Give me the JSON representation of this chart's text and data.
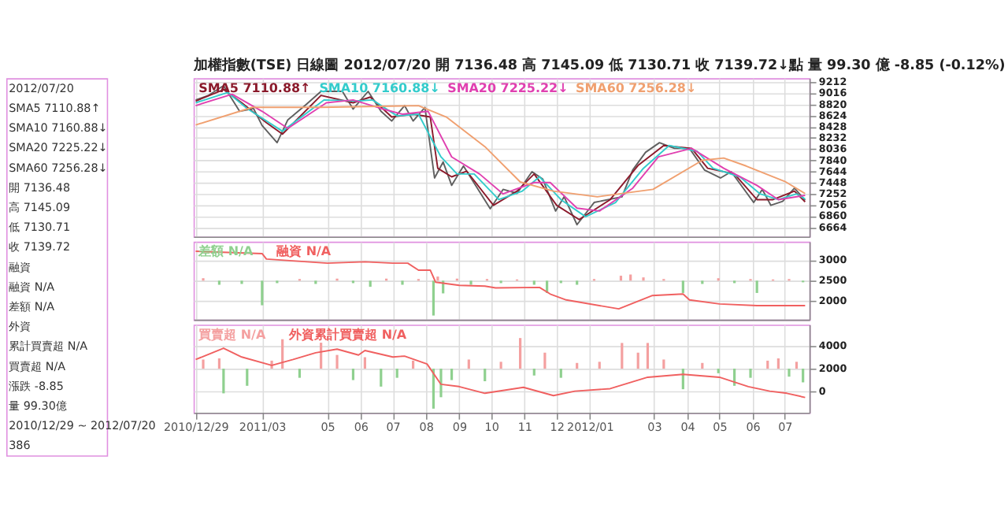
{
  "chart_data": [
    {
      "type": "line",
      "title": "加權指數(TSE) 日線圖 2012/07/20 開 7136.48 高 7145.09 低 7130.71 收 7139.72↓點 量 99.30 億 -8.85 (-0.12%)",
      "xlim": [
        "2010-12-27",
        "2012-07-24"
      ],
      "xticks": [
        {
          "value": "2010-12-29",
          "label": null
        },
        {
          "value": "2011-03-01",
          "label": null
        },
        {
          "value": "2011-05-01",
          "label": null
        },
        {
          "value": "2011-06-01",
          "label": null
        },
        {
          "value": "2011-07-01",
          "label": null
        },
        {
          "value": "2011-08-01",
          "label": null
        },
        {
          "value": "2011-09-01",
          "label": null
        },
        {
          "value": "2011-10-01",
          "label": null
        },
        {
          "value": "2011-11-01",
          "label": null
        },
        {
          "value": "2011-12-01",
          "label": null
        },
        {
          "value": "2012-01-01",
          "label": null
        },
        {
          "value": "2012-03-01",
          "label": null
        },
        {
          "value": "2012-04-01",
          "label": null
        },
        {
          "value": "2012-05-01",
          "label": null
        },
        {
          "value": "2012-06-01",
          "label": null
        },
        {
          "value": "2012-07-01",
          "label": null
        }
      ],
      "ylim": [
        6500,
        9280
      ],
      "yticks": [
        6664,
        6860,
        7056,
        7252,
        7448,
        7644,
        7840,
        8036,
        8232,
        8428,
        8624,
        8820,
        9016,
        9212
      ],
      "grid": true,
      "tick_labels": "y",
      "series": [
        {
          "color": "#606060",
          "x": [
            "2010-12-29",
            "2011-01-10",
            "2011-01-24",
            "2011-02-08",
            "2011-02-21",
            "2011-03-01",
            "2011-03-15",
            "2011-03-25",
            "2011-04-10",
            "2011-04-25",
            "2011-05-15",
            "2011-05-25",
            "2011-06-08",
            "2011-06-20",
            "2011-06-30",
            "2011-07-12",
            "2011-07-20",
            "2011-07-31",
            "2011-08-09",
            "2011-08-17",
            "2011-08-25",
            "2011-09-05",
            "2011-09-12",
            "2011-09-30",
            "2011-10-12",
            "2011-10-25",
            "2011-11-08",
            "2011-11-18",
            "2011-11-30",
            "2011-12-08",
            "2011-12-20",
            "2012-01-05",
            "2012-01-31",
            "2012-02-10",
            "2012-02-22",
            "2012-03-06",
            "2012-03-20",
            "2012-04-03",
            "2012-04-17",
            "2012-05-02",
            "2012-05-12",
            "2012-06-02",
            "2012-06-10",
            "2012-06-18",
            "2012-06-29",
            "2012-07-10",
            "2012-07-20"
          ],
          "values": [
            8900,
            8980,
            9150,
            8700,
            8750,
            8450,
            8150,
            8550,
            8800,
            9050,
            9050,
            8740,
            9050,
            8700,
            8530,
            8800,
            8530,
            8770,
            7530,
            7810,
            7400,
            7740,
            7530,
            6990,
            7330,
            7260,
            7640,
            7510,
            6950,
            7200,
            6710,
            7100,
            7200,
            7670,
            7980,
            8150,
            8050,
            8050,
            7670,
            7530,
            7640,
            7100,
            7330,
            7050,
            7120,
            7350,
            7139.72
          ]
        },
        {
          "name": "SMA5 7110.88↑",
          "color": "#8b1a2b",
          "x": [
            "2010-12-29",
            "2011-01-24",
            "2011-02-10",
            "2011-03-05",
            "2011-03-20",
            "2011-04-25",
            "2011-05-25",
            "2011-06-10",
            "2011-06-30",
            "2011-07-20",
            "2011-08-05",
            "2011-08-12",
            "2011-08-25",
            "2011-09-08",
            "2011-10-03",
            "2011-10-25",
            "2011-11-10",
            "2011-12-01",
            "2011-12-22",
            "2012-01-20",
            "2012-02-15",
            "2012-03-10",
            "2012-04-05",
            "2012-04-20",
            "2012-05-15",
            "2012-06-05",
            "2012-06-20",
            "2012-07-10",
            "2012-07-20"
          ],
          "values": [
            8880,
            9080,
            8850,
            8500,
            8300,
            8980,
            8850,
            8950,
            8600,
            8650,
            8600,
            7700,
            7550,
            7650,
            7050,
            7300,
            7600,
            7050,
            6800,
            7150,
            7750,
            8100,
            8050,
            7700,
            7600,
            7150,
            7150,
            7300,
            7110.88
          ]
        },
        {
          "name": "SMA10 7160.88↓",
          "color": "#33cccc",
          "x": [
            "2010-12-29",
            "2011-01-28",
            "2011-02-15",
            "2011-03-20",
            "2011-04-28",
            "2011-05-28",
            "2011-06-12",
            "2011-07-05",
            "2011-07-25",
            "2011-08-15",
            "2011-08-30",
            "2011-09-15",
            "2011-10-08",
            "2011-10-30",
            "2011-11-15",
            "2011-12-05",
            "2011-12-28",
            "2012-01-25",
            "2012-02-20",
            "2012-03-15",
            "2012-04-10",
            "2012-04-25",
            "2012-05-20",
            "2012-06-08",
            "2012-06-25",
            "2012-07-12",
            "2012-07-20"
          ],
          "values": [
            8850,
            9030,
            8750,
            8350,
            8900,
            8880,
            8900,
            8620,
            8650,
            7900,
            7600,
            7600,
            7150,
            7300,
            7550,
            7150,
            6850,
            7100,
            7700,
            8100,
            8000,
            7700,
            7550,
            7250,
            7150,
            7250,
            7160.88
          ]
        },
        {
          "name": "SMA20 7225.22↓",
          "color": "#e040b0",
          "x": [
            "2010-12-29",
            "2011-02-01",
            "2011-03-01",
            "2011-03-25",
            "2011-04-30",
            "2011-05-25",
            "2011-06-20",
            "2011-07-10",
            "2011-08-03",
            "2011-08-25",
            "2011-09-20",
            "2011-10-12",
            "2011-11-10",
            "2011-11-25",
            "2011-12-20",
            "2012-01-10",
            "2012-02-10",
            "2012-03-05",
            "2012-04-05",
            "2012-05-05",
            "2012-06-05",
            "2012-06-25",
            "2012-07-20"
          ],
          "values": [
            8800,
            9000,
            8700,
            8400,
            8850,
            8900,
            8750,
            8650,
            8700,
            7900,
            7600,
            7250,
            7450,
            7450,
            7000,
            6950,
            7350,
            7900,
            8050,
            7700,
            7400,
            7150,
            7225.22
          ]
        },
        {
          "name": "SMA60 7256.28↓",
          "color": "#f0a070",
          "x": [
            "2010-12-29",
            "2011-02-20",
            "2011-04-25",
            "2011-07-25",
            "2011-08-20",
            "2011-09-25",
            "2011-10-28",
            "2011-11-28",
            "2012-01-08",
            "2012-02-29",
            "2012-04-15",
            "2012-05-05",
            "2012-05-26",
            "2012-07-01",
            "2012-07-20"
          ],
          "values": [
            8460,
            8770,
            8770,
            8800,
            8600,
            8080,
            7460,
            7300,
            7200,
            7330,
            7840,
            7880,
            7740,
            7470,
            7256.28
          ]
        }
      ]
    },
    {
      "type": "line",
      "xlim": [
        "2010-12-27",
        "2012-07-24"
      ],
      "xticks": [
        {
          "value": "2010-12-29",
          "label": null
        },
        {
          "value": "2011-03-01",
          "label": null
        },
        {
          "value": "2011-05-01",
          "label": null
        },
        {
          "value": "2011-06-01",
          "label": null
        },
        {
          "value": "2011-07-01",
          "label": null
        },
        {
          "value": "2011-08-01",
          "label": null
        },
        {
          "value": "2011-09-01",
          "label": null
        },
        {
          "value": "2011-10-01",
          "label": null
        },
        {
          "value": "2011-11-01",
          "label": null
        },
        {
          "value": "2011-12-01",
          "label": null
        },
        {
          "value": "2012-01-01",
          "label": null
        },
        {
          "value": "2012-03-01",
          "label": null
        },
        {
          "value": "2012-04-01",
          "label": null
        },
        {
          "value": "2012-05-01",
          "label": null
        },
        {
          "value": "2012-06-01",
          "label": null
        },
        {
          "value": "2012-07-01",
          "label": null
        }
      ],
      "ylim": [
        1550,
        3450
      ],
      "yticks": [
        2000,
        2500,
        3000
      ],
      "grid": true,
      "tick_labels": "y",
      "series": [
        {
          "name": "差額 N/A",
          "type": "bar",
          "x": [
            "2011-01-05",
            "2011-01-20",
            "2011-02-10",
            "2011-03-01",
            "2011-03-15",
            "2011-04-05",
            "2011-04-20",
            "2011-05-10",
            "2011-05-25",
            "2011-06-10",
            "2011-06-25",
            "2011-07-10",
            "2011-07-25",
            "2011-08-08",
            "2011-08-12",
            "2011-08-17",
            "2011-08-30",
            "2011-09-12",
            "2011-09-27",
            "2011-10-10",
            "2011-10-25",
            "2011-11-10",
            "2011-11-22",
            "2011-12-05",
            "2011-12-20",
            "2012-01-05",
            "2012-01-30",
            "2012-02-08",
            "2012-02-20",
            "2012-03-10",
            "2012-03-28",
            "2012-04-15",
            "2012-04-30",
            "2012-05-15",
            "2012-05-30",
            "2012-06-05",
            "2012-06-20",
            "2012-07-05",
            "2012-07-18"
          ],
          "base": [
            2500,
            2500,
            2500,
            2500,
            2500,
            2500,
            2500,
            2500,
            2500,
            2500,
            2500,
            2500,
            2500,
            2500,
            2500,
            2500,
            2500,
            2500,
            2500,
            2500,
            2500,
            2500,
            2500,
            2500,
            2500,
            2500,
            2500,
            2500,
            2500,
            2500,
            2500,
            2500,
            2500,
            2500,
            2500,
            2500,
            2500,
            2500,
            2500
          ],
          "values": [
            60,
            -100,
            -80,
            -600,
            -60,
            40,
            -80,
            50,
            -60,
            -150,
            50,
            -100,
            40,
            -850,
            100,
            -310,
            50,
            -100,
            40,
            -60,
            30,
            -100,
            -300,
            -60,
            -100,
            40,
            120,
            150,
            80,
            40,
            -300,
            -80,
            60,
            -60,
            40,
            -300,
            30,
            40,
            -40
          ],
          "colors": [
            "#f4a0a0",
            "#8fd08f",
            "#8fd08f",
            "#8fd08f",
            "#8fd08f",
            "#f4a0a0",
            "#8fd08f",
            "#f4a0a0",
            "#8fd08f",
            "#8fd08f",
            "#f4a0a0",
            "#8fd08f",
            "#f4a0a0",
            "#8fd08f",
            "#f4a0a0",
            "#8fd08f",
            "#f4a0a0",
            "#8fd08f",
            "#f4a0a0",
            "#8fd08f",
            "#f4a0a0",
            "#8fd08f",
            "#8fd08f",
            "#8fd08f",
            "#8fd08f",
            "#f4a0a0",
            "#f4a0a0",
            "#f4a0a0",
            "#f4a0a0",
            "#f4a0a0",
            "#8fd08f",
            "#8fd08f",
            "#f4a0a0",
            "#8fd08f",
            "#f4a0a0",
            "#8fd08f",
            "#f4a0a0",
            "#f4a0a0",
            "#8fd08f"
          ]
        },
        {
          "name": "融資 N/A",
          "color": "#f06060",
          "x": [
            "2010-12-29",
            "2011-03-01",
            "2011-03-05",
            "2011-05-01",
            "2011-06-05",
            "2011-07-01",
            "2011-07-15",
            "2011-07-25",
            "2011-08-05",
            "2011-08-10",
            "2011-09-01",
            "2011-09-25",
            "2011-10-05",
            "2011-11-15",
            "2011-11-25",
            "2011-12-10",
            "2012-01-28",
            "2012-02-28",
            "2012-03-28",
            "2012-04-03",
            "2012-05-01",
            "2012-06-05",
            "2012-07-20"
          ],
          "values": [
            3216,
            3160,
            3027,
            2927,
            2960,
            2927,
            2927,
            2757,
            2757,
            2463,
            2387,
            2368,
            2325,
            2335,
            2174,
            2030,
            1812,
            2136,
            2174,
            2030,
            1933,
            1893,
            1893
          ]
        }
      ]
    },
    {
      "type": "line",
      "xlim": [
        "2010-12-27",
        "2012-07-24"
      ],
      "xticks": [
        {
          "value": "2010-12-29",
          "label": "2010/12/29"
        },
        {
          "value": "2011-03-01",
          "label": "2011/03"
        },
        {
          "value": "2011-05-01",
          "label": "05"
        },
        {
          "value": "2011-06-01",
          "label": "06"
        },
        {
          "value": "2011-07-01",
          "label": "07"
        },
        {
          "value": "2011-08-01",
          "label": "08"
        },
        {
          "value": "2011-09-01",
          "label": "09"
        },
        {
          "value": "2011-10-01",
          "label": "10"
        },
        {
          "value": "2011-11-01",
          "label": "11"
        },
        {
          "value": "2011-12-01",
          "label": "12"
        },
        {
          "value": "2012-01-01",
          "label": "2012/01"
        },
        {
          "value": "2012-03-01",
          "label": "03"
        },
        {
          "value": "2012-04-01",
          "label": "04"
        },
        {
          "value": "2012-05-01",
          "label": "05"
        },
        {
          "value": "2012-06-01",
          "label": "06"
        },
        {
          "value": "2012-07-01",
          "label": "07"
        }
      ],
      "ylim": [
        -1850,
        5850
      ],
      "yticks": [
        0,
        2000,
        4000
      ],
      "grid": true,
      "series": [
        {
          "name": "買賣超 N/A",
          "type": "bar",
          "x": [
            "2011-01-05",
            "2011-01-20",
            "2011-01-24",
            "2011-02-15",
            "2011-03-10",
            "2011-03-20",
            "2011-04-05",
            "2011-04-25",
            "2011-05-10",
            "2011-05-25",
            "2011-06-05",
            "2011-06-20",
            "2011-07-05",
            "2011-07-20",
            "2011-08-08",
            "2011-08-15",
            "2011-08-25",
            "2011-09-10",
            "2011-09-25",
            "2011-10-10",
            "2011-10-28",
            "2011-11-10",
            "2011-11-20",
            "2011-12-05",
            "2011-12-20",
            "2012-01-10",
            "2012-01-31",
            "2012-02-15",
            "2012-02-24",
            "2012-03-10",
            "2012-03-28",
            "2012-04-15",
            "2012-04-30",
            "2012-05-15",
            "2012-05-30",
            "2012-06-15",
            "2012-06-25",
            "2012-07-05",
            "2012-07-12",
            "2012-07-18"
          ],
          "base": [
            2000,
            2000,
            2000,
            2000,
            2000,
            2000,
            2000,
            2000,
            2000,
            2000,
            2000,
            2000,
            2000,
            2000,
            2000,
            2000,
            2000,
            2000,
            2000,
            2000,
            2000,
            2000,
            2000,
            2000,
            2000,
            2000,
            2000,
            2000,
            2000,
            2000,
            2000,
            2000,
            2000,
            2000,
            2000,
            2000,
            2000,
            2000,
            2000,
            2000
          ],
          "values": [
            800,
            900,
            -2160,
            -1500,
            700,
            2575,
            -800,
            2270,
            1200,
            -1000,
            1000,
            -1570,
            -800,
            700,
            -3500,
            -2500,
            -1000,
            800,
            -1100,
            600,
            2680,
            -600,
            1400,
            -800,
            500,
            600,
            2250,
            1400,
            2250,
            800,
            -1800,
            500,
            -400,
            -1500,
            -800,
            700,
            900,
            -700,
            600,
            -1200
          ],
          "colors": [
            "#f4a0a0",
            "#f4a0a0",
            "#8fd08f",
            "#8fd08f",
            "#f4a0a0",
            "#f4a0a0",
            "#8fd08f",
            "#f4a0a0",
            "#f4a0a0",
            "#8fd08f",
            "#f4a0a0",
            "#8fd08f",
            "#8fd08f",
            "#f4a0a0",
            "#8fd08f",
            "#8fd08f",
            "#8fd08f",
            "#f4a0a0",
            "#8fd08f",
            "#f4a0a0",
            "#f4a0a0",
            "#8fd08f",
            "#f4a0a0",
            "#8fd08f",
            "#f4a0a0",
            "#f4a0a0",
            "#f4a0a0",
            "#f4a0a0",
            "#f4a0a0",
            "#f4a0a0",
            "#8fd08f",
            "#f4a0a0",
            "#8fd08f",
            "#8fd08f",
            "#8fd08f",
            "#f4a0a0",
            "#f4a0a0",
            "#8fd08f",
            "#f4a0a0",
            "#8fd08f"
          ]
        },
        {
          "name": "外資累計買賣超 N/A",
          "color": "#f06060",
          "x": [
            "2010-12-29",
            "2011-01-24",
            "2011-02-10",
            "2011-03-10",
            "2011-03-30",
            "2011-04-20",
            "2011-05-10",
            "2011-05-30",
            "2011-06-05",
            "2011-07-01",
            "2011-07-12",
            "2011-08-02",
            "2011-08-15",
            "2011-09-01",
            "2011-09-25",
            "2011-10-31",
            "2011-11-28",
            "2011-12-18",
            "2012-01-20",
            "2012-02-24",
            "2012-03-28",
            "2012-05-01",
            "2012-05-28",
            "2012-06-17",
            "2012-07-03",
            "2012-07-20"
          ],
          "values": [
            2800,
            3790,
            3017,
            2290,
            2800,
            3390,
            3710,
            3190,
            3590,
            3017,
            3100,
            2410,
            630,
            430,
            -155,
            365,
            -355,
            30,
            250,
            1250,
            1500,
            1250,
            430,
            30,
            -155,
            -520
          ]
        }
      ]
    },
    {
      "type": "other",
      "annotations": [
        "2012/07/20",
        "SMA5 7110.88↑",
        "SMA10 7160.88↓",
        "SMA20 7225.22↓",
        "SMA60 7256.28↓",
        "開 7136.48",
        "高 7145.09",
        "低 7130.71",
        "收 7139.72",
        "融資",
        "融資 N/A",
        "差額 N/A",
        "外資",
        "累計買賣超 N/A",
        "買賣超 N/A",
        "漲跌 -8.85",
        "量 99.30億",
        "2010/12/29 ~ 2012/07/20",
        "386"
      ]
    }
  ]
}
